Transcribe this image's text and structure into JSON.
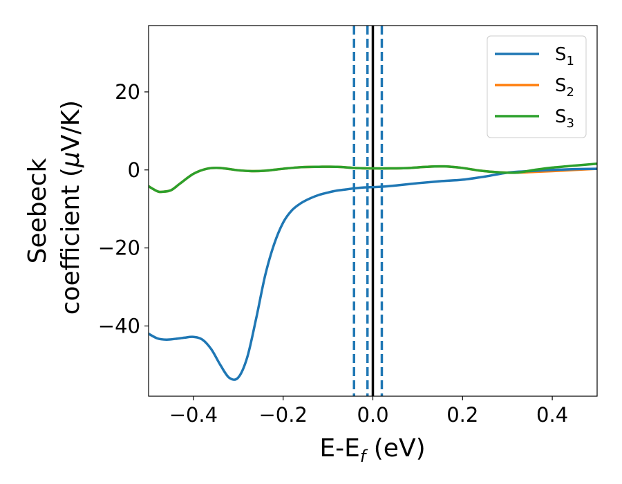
{
  "chart_data": {
    "type": "line",
    "title": "",
    "xlabel_main": "E-E",
    "xlabel_sub": "f",
    "xlabel_unit": " (eV)",
    "ylabel_line1": "Seebeck",
    "ylabel_line2_pre": "coefficient  (",
    "ylabel_mu": "μ",
    "ylabel_line2_post": "V/K)",
    "xlim": [
      -0.5,
      0.5
    ],
    "ylim": [
      -58,
      37
    ],
    "xticks": [
      -0.4,
      -0.2,
      0.0,
      0.2,
      0.4
    ],
    "xtick_labels": [
      "−0.4",
      "−0.2",
      "0.0",
      "0.2",
      "0.4"
    ],
    "yticks": [
      -40,
      -20,
      0,
      20
    ],
    "ytick_labels": [
      "−40",
      "−20",
      "0",
      "20"
    ],
    "grid": false,
    "legend_position": "top-right",
    "vlines": [
      {
        "x": 0.0,
        "color": "#000000",
        "style": "solid"
      },
      {
        "x": -0.042,
        "color": "#1f77b4",
        "style": "dashed"
      },
      {
        "x": -0.012,
        "color": "#1f77b4",
        "style": "dashed"
      },
      {
        "x": 0.02,
        "color": "#1f77b4",
        "style": "dashed"
      }
    ],
    "series": [
      {
        "name": "S",
        "sub": "1",
        "color": "#1f77b4",
        "x": [
          -0.5,
          -0.48,
          -0.46,
          -0.44,
          -0.42,
          -0.4,
          -0.38,
          -0.36,
          -0.34,
          -0.32,
          -0.3,
          -0.28,
          -0.26,
          -0.24,
          -0.22,
          -0.2,
          -0.18,
          -0.16,
          -0.14,
          -0.12,
          -0.1,
          -0.08,
          -0.06,
          -0.04,
          -0.02,
          0.0,
          0.02,
          0.05,
          0.1,
          0.15,
          0.2,
          0.25,
          0.3,
          0.35,
          0.4,
          0.45,
          0.5
        ],
        "y": [
          -42,
          -43.2,
          -43.5,
          -43.3,
          -43,
          -42.8,
          -43.5,
          -46,
          -50,
          -53.3,
          -53.2,
          -48,
          -38,
          -27,
          -19,
          -13.5,
          -10.3,
          -8.5,
          -7.3,
          -6.4,
          -5.8,
          -5.3,
          -5.0,
          -4.7,
          -4.5,
          -4.4,
          -4.3,
          -4.0,
          -3.4,
          -2.9,
          -2.5,
          -1.7,
          -0.7,
          -0.3,
          0.0,
          0.2,
          0.3
        ]
      },
      {
        "name": "S",
        "sub": "2",
        "color": "#ff7f0e",
        "x": [
          -0.5,
          -0.48,
          -0.47,
          -0.45,
          -0.43,
          -0.4,
          -0.37,
          -0.34,
          -0.3,
          -0.27,
          -0.24,
          -0.2,
          -0.16,
          -0.12,
          -0.08,
          -0.04,
          0.0,
          0.04,
          0.08,
          0.12,
          0.16,
          0.2,
          0.24,
          0.28,
          0.32,
          0.36,
          0.4,
          0.45,
          0.5
        ],
        "y": [
          -4.2,
          -5.5,
          -5.6,
          -5.2,
          -3.5,
          -1.0,
          0.3,
          0.5,
          -0.1,
          -0.3,
          -0.2,
          0.3,
          0.7,
          0.8,
          0.8,
          0.5,
          0.4,
          0.4,
          0.5,
          0.8,
          0.9,
          0.5,
          -0.2,
          -0.6,
          -0.7,
          -0.5,
          -0.3,
          0.0,
          0.3
        ]
      },
      {
        "name": "S",
        "sub": "3",
        "color": "#2ca02c",
        "x": [
          -0.5,
          -0.48,
          -0.47,
          -0.45,
          -0.43,
          -0.4,
          -0.37,
          -0.34,
          -0.3,
          -0.27,
          -0.24,
          -0.2,
          -0.16,
          -0.12,
          -0.08,
          -0.04,
          0.0,
          0.04,
          0.08,
          0.12,
          0.16,
          0.2,
          0.24,
          0.28,
          0.32,
          0.36,
          0.4,
          0.45,
          0.5
        ],
        "y": [
          -4.2,
          -5.5,
          -5.6,
          -5.2,
          -3.5,
          -1.0,
          0.3,
          0.5,
          -0.1,
          -0.3,
          -0.2,
          0.3,
          0.7,
          0.8,
          0.8,
          0.5,
          0.4,
          0.4,
          0.5,
          0.8,
          0.9,
          0.5,
          -0.2,
          -0.6,
          -0.7,
          0.0,
          0.6,
          1.1,
          1.6
        ]
      }
    ]
  }
}
